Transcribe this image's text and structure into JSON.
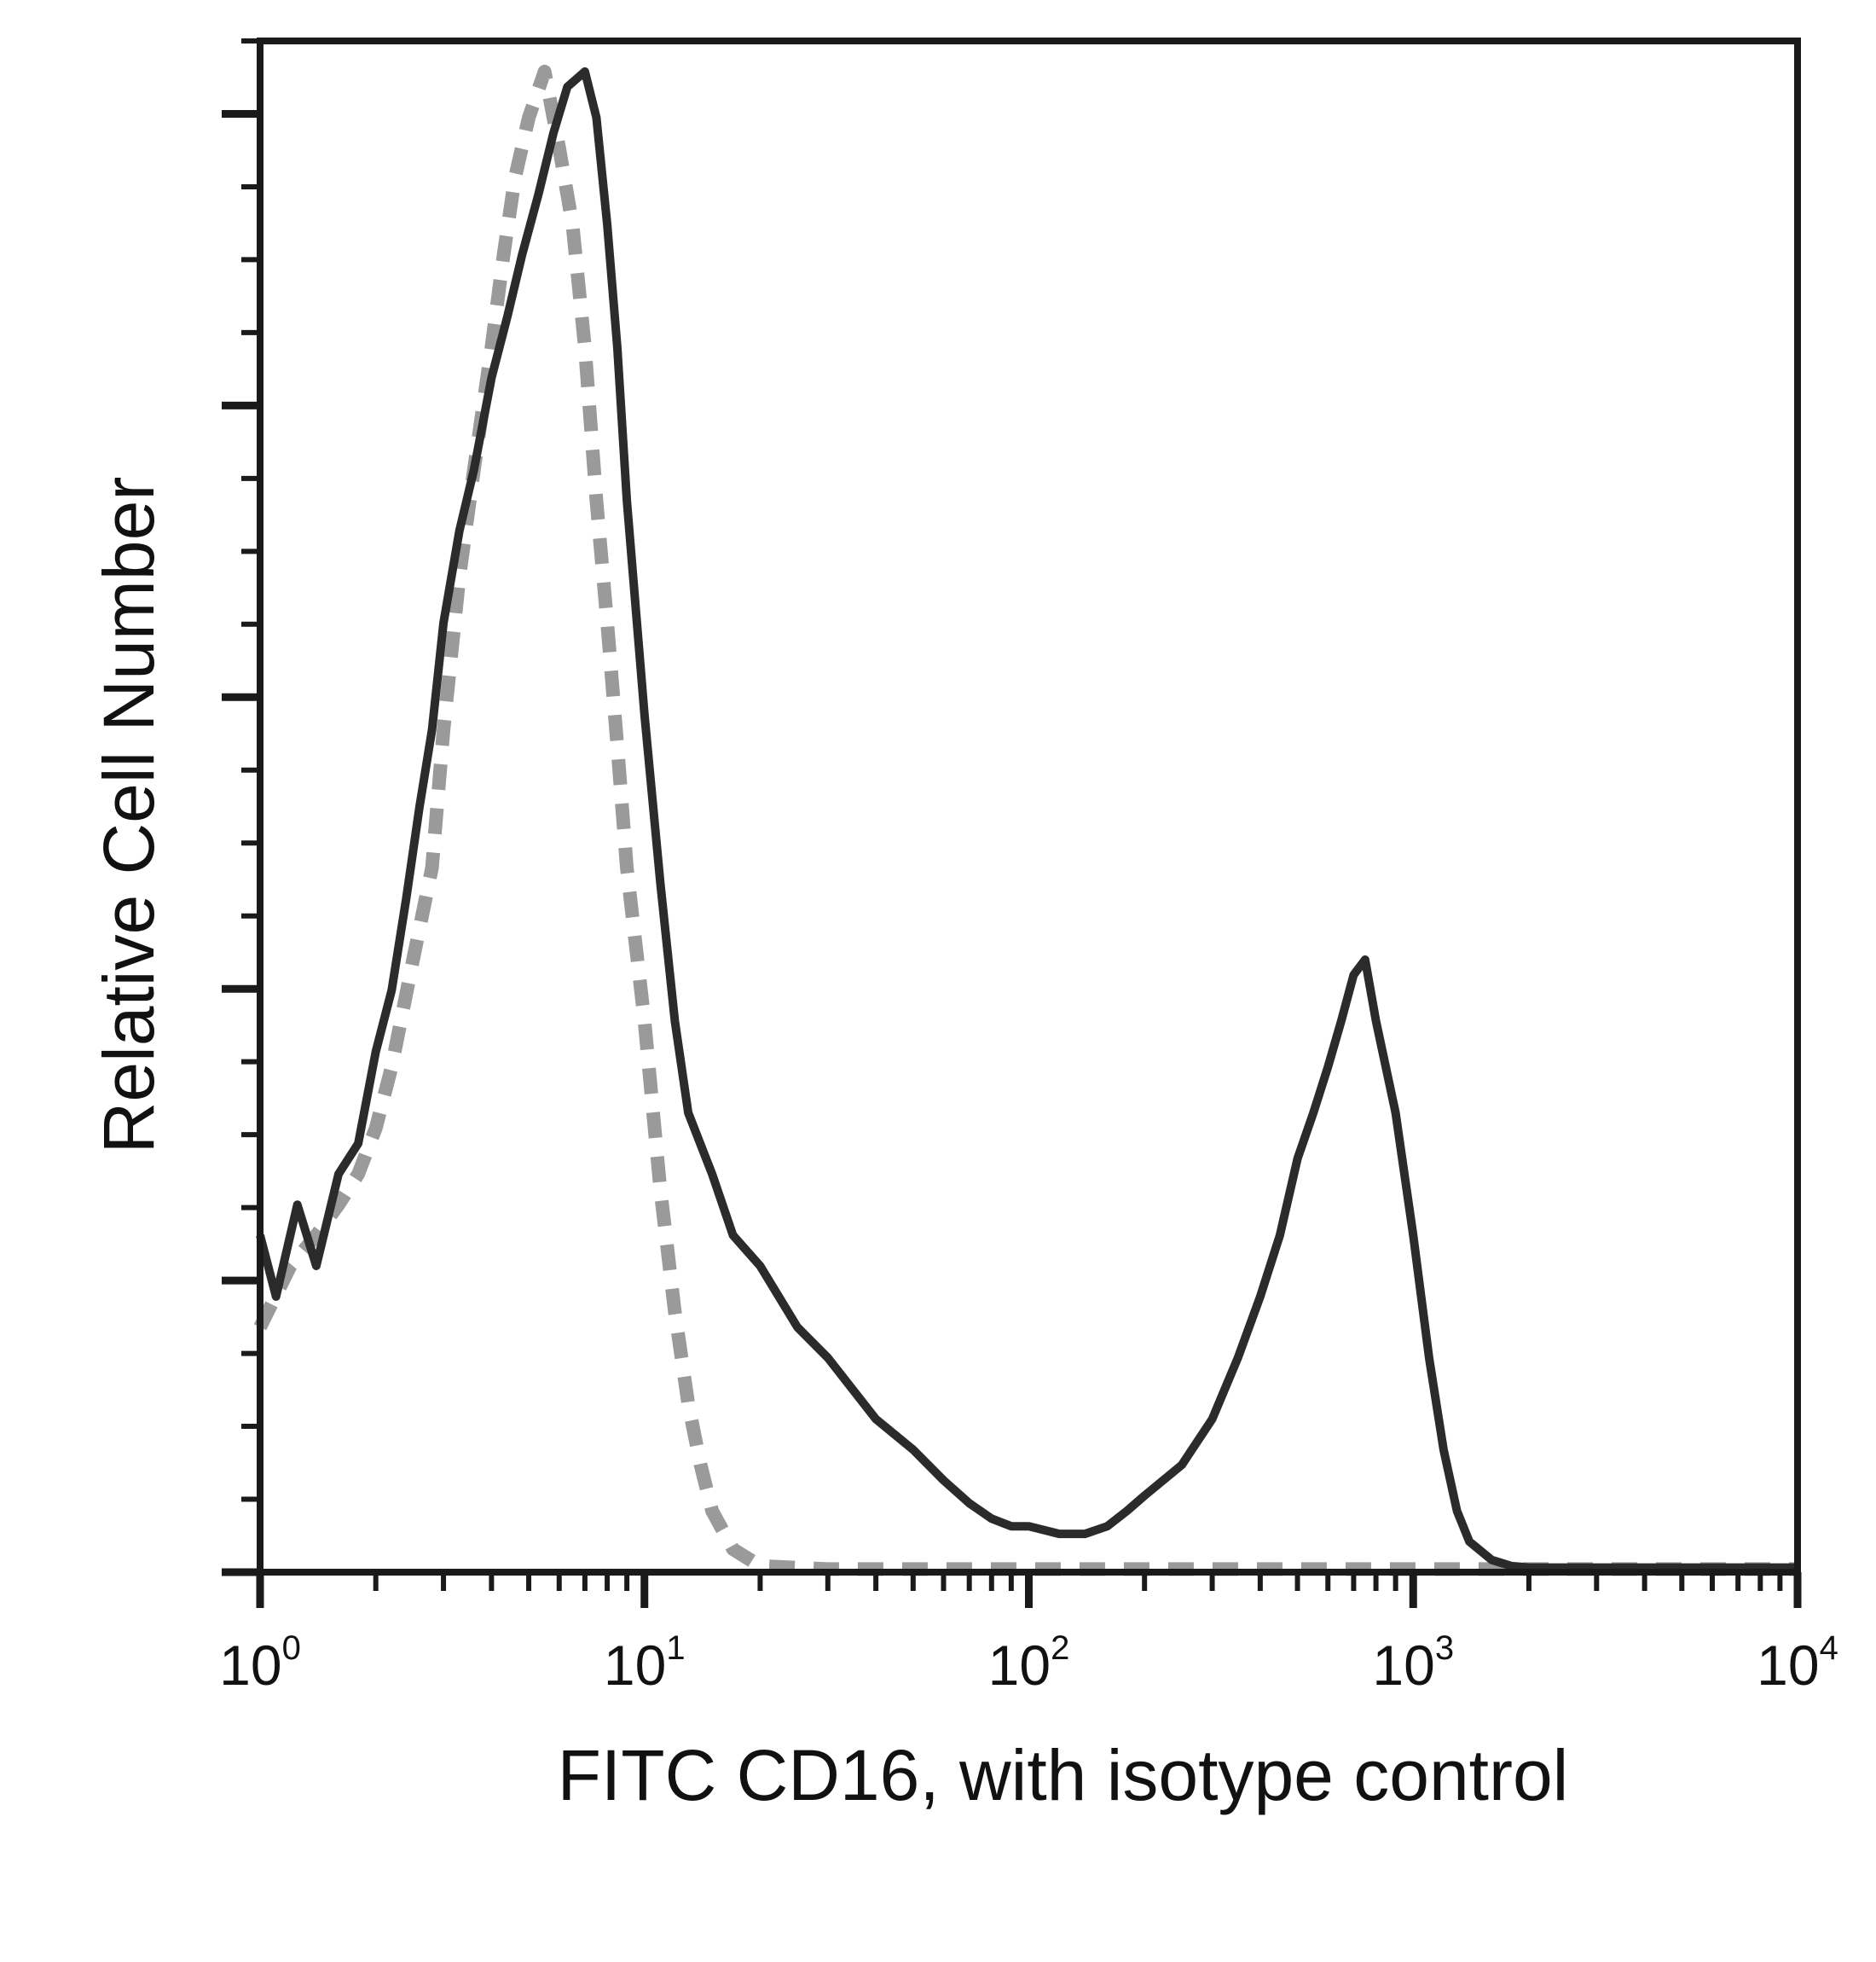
{
  "chart_data": {
    "type": "line",
    "title": "",
    "xlabel": "FITC CD16, with isotype control",
    "ylabel": "Relative Cell Number",
    "x_scale": "log",
    "xlim": [
      1,
      10000
    ],
    "ylim": [
      0,
      100
    ],
    "x_ticks": [
      {
        "value": 1,
        "base": "10",
        "exp": "0"
      },
      {
        "value": 10,
        "base": "10",
        "exp": "1"
      },
      {
        "value": 100,
        "base": "10",
        "exp": "2"
      },
      {
        "value": 1000,
        "base": "10",
        "exp": "3"
      },
      {
        "value": 10000,
        "base": "10",
        "exp": "4"
      }
    ],
    "grid": false,
    "legend": "none",
    "series": [
      {
        "style": "dashed",
        "color": "#9a9a9a",
        "x": [
          1,
          1.2,
          1.4,
          1.6,
          1.8,
          2,
          2.2,
          2.5,
          2.8,
          3,
          3.3,
          3.6,
          4,
          4.3,
          4.6,
          5,
          5.5,
          6,
          6.5,
          7,
          7.5,
          8,
          8.5,
          9,
          10,
          11,
          12,
          13,
          14,
          15,
          17,
          20,
          30,
          50,
          100,
          200,
          500,
          1000,
          10000
        ],
        "y": [
          16,
          20,
          22,
          24,
          26,
          29,
          33,
          40,
          46,
          55,
          65,
          72,
          80,
          86,
          91,
          95,
          98,
          93,
          88,
          80,
          70,
          62,
          54,
          46,
          36,
          25,
          17,
          11,
          7,
          4,
          1.5,
          0.4,
          0.2,
          0.2,
          0.2,
          0.2,
          0.2,
          0.2,
          0.2
        ]
      },
      {
        "style": "solid",
        "color": "#2b2b2b",
        "x": [
          1,
          1.1,
          1.25,
          1.4,
          1.6,
          1.8,
          2,
          2.2,
          2.4,
          2.6,
          2.8,
          3,
          3.3,
          3.6,
          4,
          4.4,
          4.8,
          5.3,
          5.8,
          6.3,
          7,
          7.5,
          8,
          8.5,
          9,
          10,
          11,
          12,
          13,
          15,
          17,
          20,
          25,
          30,
          40,
          50,
          60,
          70,
          80,
          90,
          100,
          120,
          140,
          160,
          180,
          200,
          250,
          300,
          350,
          400,
          450,
          500,
          550,
          600,
          650,
          700,
          750,
          800,
          900,
          1000,
          1100,
          1200,
          1300,
          1400,
          1600,
          1800,
          2000,
          3000,
          5000,
          10000
        ],
        "y": [
          22,
          18,
          24,
          20,
          26,
          28,
          34,
          38,
          44,
          50,
          55,
          62,
          68,
          72,
          78,
          82,
          86,
          90,
          94,
          97,
          98,
          95,
          88,
          80,
          70,
          56,
          45,
          36,
          30,
          26,
          22,
          20,
          16,
          14,
          10,
          8,
          6,
          4.5,
          3.5,
          3,
          3,
          2.5,
          2.5,
          3,
          4,
          5,
          7,
          10,
          14,
          18,
          22,
          27,
          30,
          33,
          36,
          39,
          40,
          36,
          30,
          22,
          14,
          8,
          4,
          2,
          0.8,
          0.4,
          0.3,
          0.3,
          0.3,
          0.3
        ]
      }
    ]
  }
}
